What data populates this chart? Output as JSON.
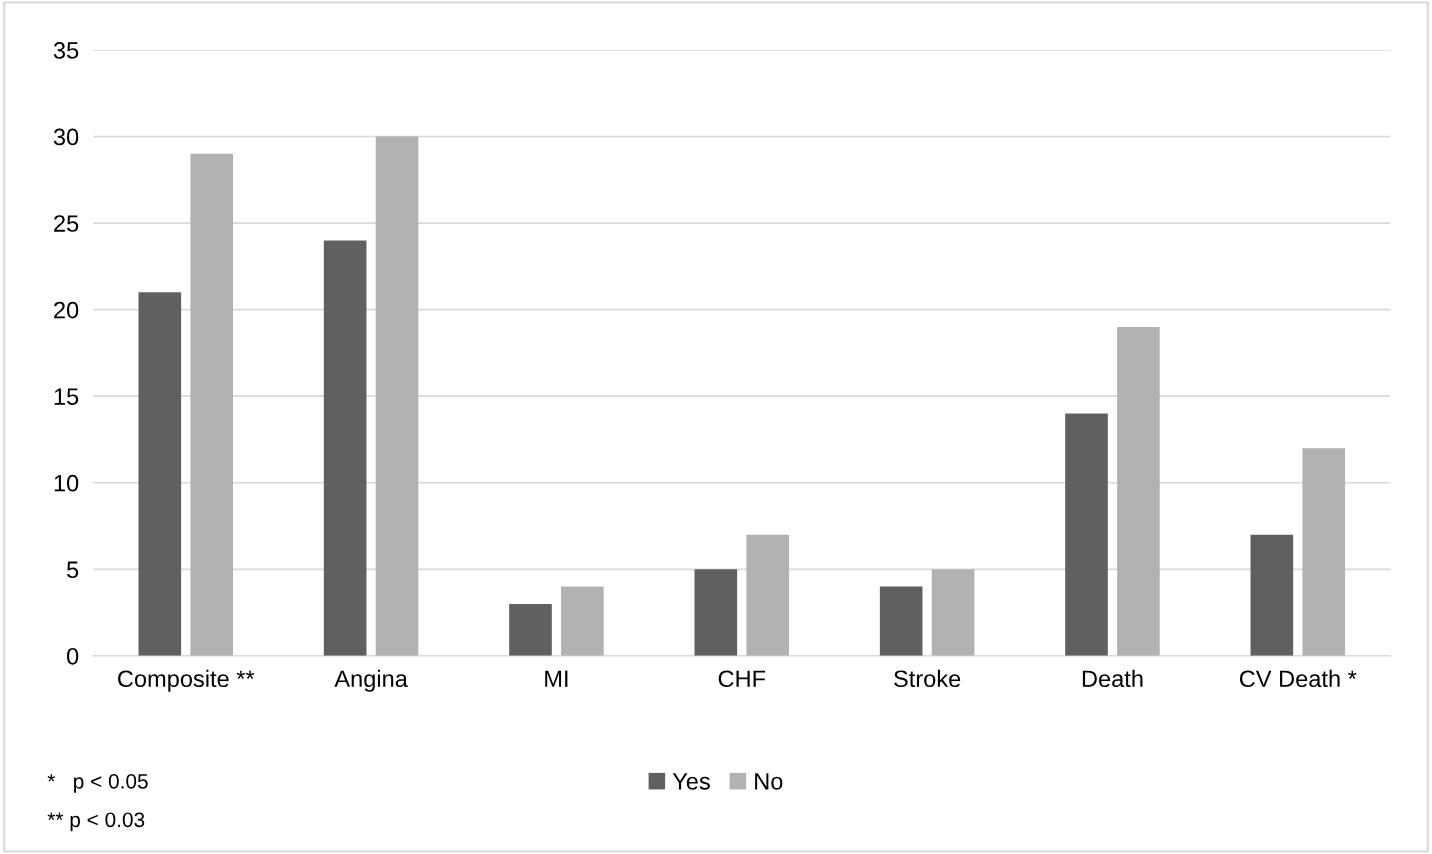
{
  "chart_data": {
    "type": "bar",
    "categories": [
      "Composite **",
      "Angina",
      "MI",
      "CHF",
      "Stroke",
      "Death",
      "CV Death *"
    ],
    "series": [
      {
        "name": "Yes",
        "color": "#606060",
        "values": [
          21,
          24,
          3,
          5,
          4,
          14,
          7
        ]
      },
      {
        "name": "No",
        "color": "#b2b2b2",
        "values": [
          29,
          30,
          4,
          7,
          5,
          19,
          12
        ]
      }
    ],
    "ylim": [
      0,
      35
    ],
    "yticks": [
      0,
      5,
      10,
      15,
      20,
      25,
      30,
      35
    ],
    "grid": "y",
    "legend": "bottom",
    "annotations": [
      "*   p < 0.05",
      "** p < 0.03"
    ]
  }
}
